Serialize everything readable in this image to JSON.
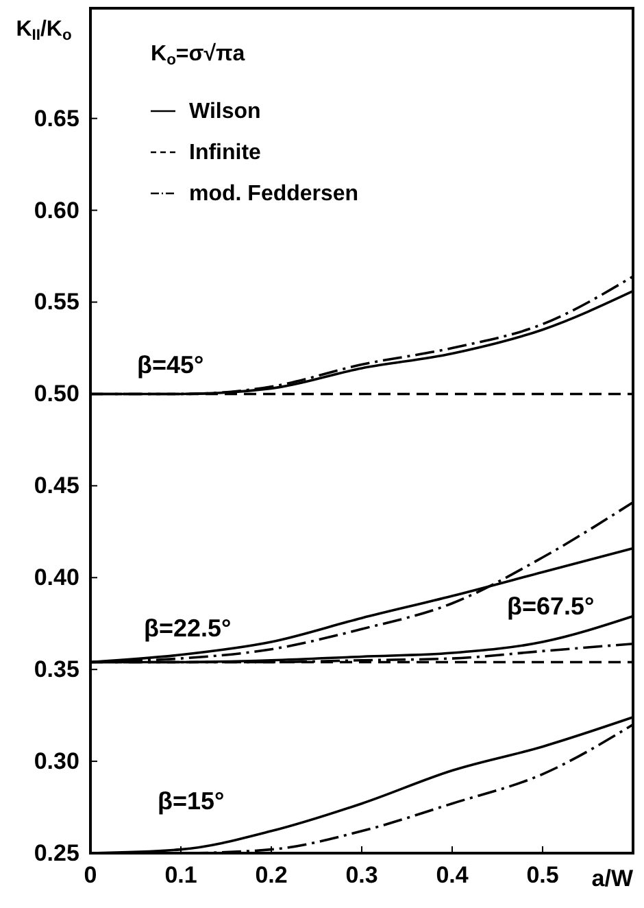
{
  "chart_data": {
    "type": "line",
    "xlabel": "a/W",
    "ylabel": "K$_{II}$/K$_{o}$",
    "x": [
      0,
      0.1,
      0.2,
      0.3,
      0.4,
      0.5,
      0.6
    ],
    "xlim": [
      0,
      0.6
    ],
    "ylim": [
      0.25,
      0.71
    ],
    "xticks": [
      0,
      0.1,
      0.2,
      0.3,
      0.4,
      0.5
    ],
    "yticks": [
      0.25,
      {
        "value": 0.3,
        "label": "0.30"
      },
      0.35,
      {
        "value": 0.4,
        "label": "0.40"
      },
      0.45,
      {
        "value": 0.5,
        "label": "0.50"
      },
      0.55,
      {
        "value": 0.6,
        "label": "0.60"
      },
      0.65
    ],
    "grid": false,
    "legend": "top left",
    "series": [
      {
        "name": "Wilson",
        "color": "#000000",
        "line_style": "solid",
        "values": [
          0.5,
          0.5,
          0.503,
          0.514,
          0.522,
          0.535,
          0.556
        ]
      },
      {
        "name": "Infinite",
        "color": "#000000",
        "line_style": "dashed",
        "values": [
          0.5,
          0.5,
          0.5,
          0.5,
          0.5,
          0.5,
          0.5
        ]
      },
      {
        "name": "mod. Feddersen",
        "color": "#000000",
        "line_style": "dashdot",
        "values": [
          0.5,
          0.5,
          0.504,
          0.516,
          0.525,
          0.538,
          0.564
        ]
      },
      {
        "color": "#000000",
        "line_style": "solid",
        "values": [
          0.354,
          0.358,
          0.365,
          0.378,
          0.39,
          0.403,
          0.416
        ]
      },
      {
        "color": "#000000",
        "line_style": "dashdot",
        "values": [
          0.354,
          0.356,
          0.361,
          0.372,
          0.386,
          0.411,
          0.441
        ]
      },
      {
        "color": "#000000",
        "line_style": "solid",
        "values": [
          0.354,
          0.354,
          0.355,
          0.357,
          0.359,
          0.365,
          0.379
        ]
      },
      {
        "color": "#000000",
        "line_style": "dashdot",
        "values": [
          0.354,
          0.354,
          0.354,
          0.355,
          0.356,
          0.36,
          0.364
        ]
      },
      {
        "color": "#000000",
        "line_style": "dashed",
        "values": [
          0.354,
          0.354,
          0.354,
          0.354,
          0.354,
          0.354,
          0.354
        ]
      },
      {
        "color": "#000000",
        "line_style": "solid",
        "values": [
          0.25,
          0.252,
          0.262,
          0.277,
          0.295,
          0.308,
          0.324
        ]
      },
      {
        "color": "#000000",
        "line_style": "dashdot",
        "values": [
          0.25,
          0.25,
          0.252,
          0.262,
          0.277,
          0.293,
          0.32
        ]
      },
      {
        "color": "#000000",
        "line_style": "dashed",
        "values": [
          0.25,
          0.25,
          0.25,
          0.25,
          0.25,
          0.25,
          0.25
        ]
      }
    ],
    "annotations": [
      "K$_{o}$=σ√πa",
      "β=45°",
      "β=22.5°",
      "β=67.5°",
      "β=15°"
    ]
  }
}
